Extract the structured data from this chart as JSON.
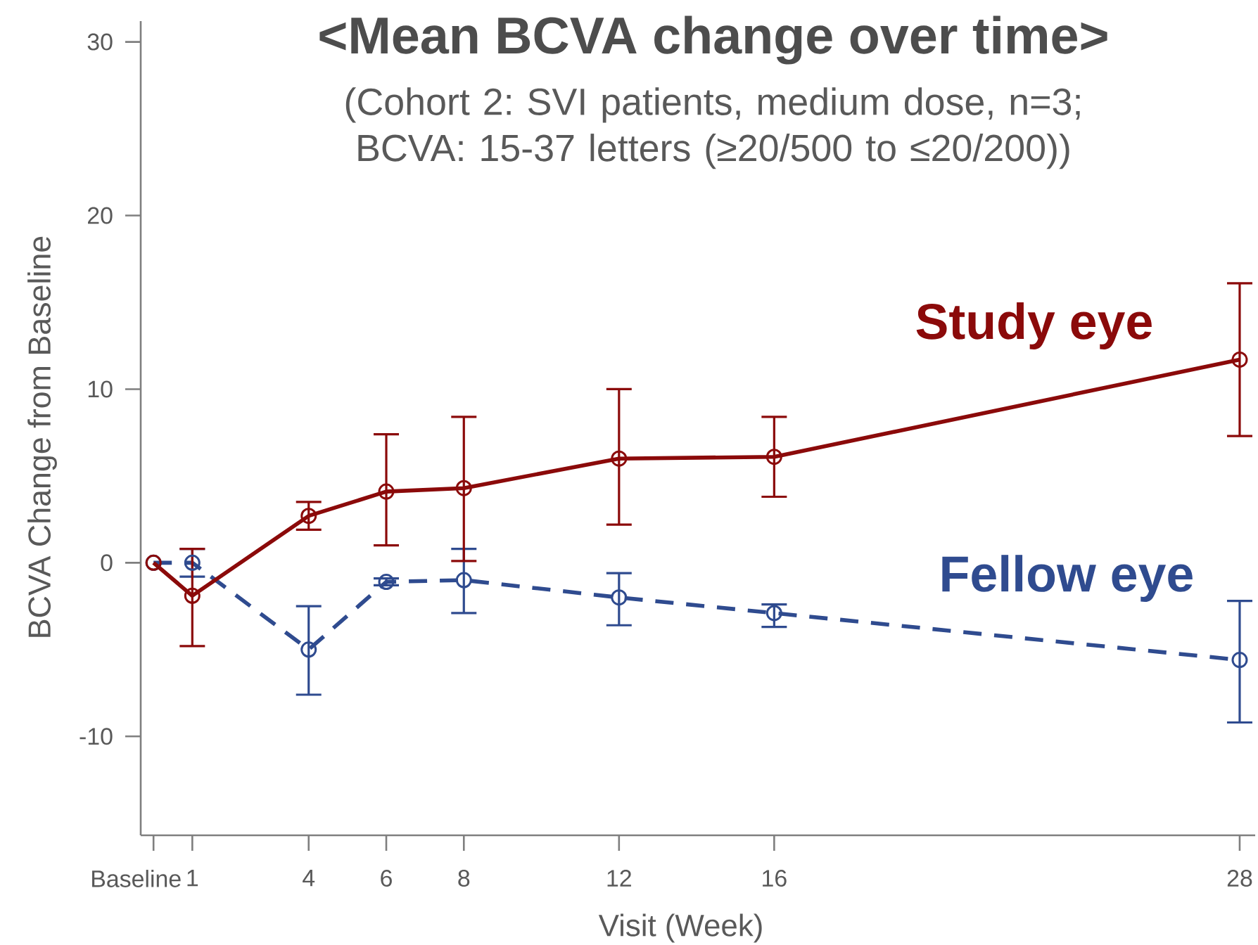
{
  "chart_data": {
    "type": "line",
    "title": "<Mean BCVA change over time>",
    "subtitle": "(Cohort 2: SVI patients, medium dose, n=3; BCVA: 15-37 letters (≥20/500 to ≤20/200))",
    "xlabel": "Visit (Week)",
    "ylabel": "BCVA Change from Baseline",
    "x": [
      0,
      1,
      4,
      6,
      8,
      12,
      16,
      28
    ],
    "xlim": [
      -0.33,
      28.4
    ],
    "xticks": [
      {
        "value": 0,
        "label": "Baseline"
      },
      1,
      4,
      6,
      8,
      12,
      16,
      28
    ],
    "ylim": [
      -15.7,
      31.2
    ],
    "yticks": [
      -10,
      0,
      10,
      20,
      30
    ],
    "marker": "circle",
    "series": [
      {
        "name": "Study eye",
        "color": "#8b0a0a",
        "line_style": "solid",
        "values": [
          0,
          -1.9,
          2.7,
          4.1,
          4.3,
          6.0,
          6.1,
          11.7
        ],
        "errors": [
          null,
          [
            -4.8,
            0.8
          ],
          [
            1.9,
            3.5
          ],
          [
            1.0,
            7.4
          ],
          [
            0.1,
            8.4
          ],
          [
            2.2,
            10.0
          ],
          [
            3.8,
            8.4
          ],
          [
            7.3,
            16.1
          ]
        ]
      },
      {
        "name": "Fellow eye",
        "color": "#2f4b8f",
        "line_style": "dashed",
        "values": [
          0,
          0,
          -5.0,
          -1.1,
          -1.0,
          -2.0,
          -2.9,
          -5.6
        ],
        "errors": [
          null,
          [
            -0.8,
            0.8
          ],
          [
            -7.6,
            -2.5
          ],
          [
            -1.3,
            -0.9
          ],
          [
            -2.9,
            0.8
          ],
          [
            -3.6,
            -0.6
          ],
          [
            -3.7,
            -2.4
          ],
          [
            -9.2,
            -2.2
          ]
        ]
      }
    ]
  }
}
